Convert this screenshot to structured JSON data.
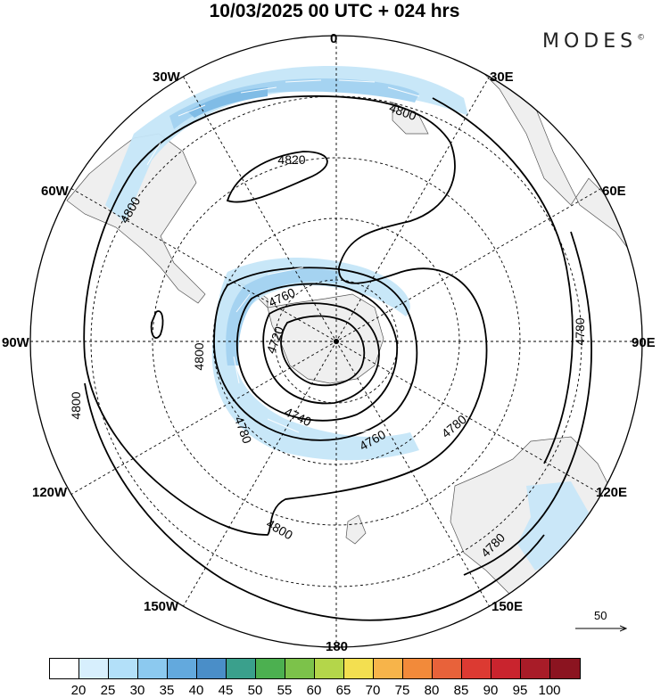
{
  "title": "10/03/2025  00 UTC  + 024 hrs",
  "brand": {
    "name": "MODES",
    "mark": "©"
  },
  "lon_labels": {
    "n": "0",
    "nne": "30E",
    "ene": "60E",
    "e": "90E",
    "ese": "120E",
    "sse": "150E",
    "s": "180",
    "ssw": "150W",
    "wsw": "120W",
    "w": "90W",
    "wnw": "60W",
    "nnw": "30W"
  },
  "contours": {
    "c4820": "4820",
    "c4800a": "4800",
    "c4800b": "4800",
    "c4800c": "4800",
    "c4800d": "4800",
    "c4800e": "4800",
    "c4780a": "4780",
    "c4780b": "4780",
    "c4780c": "4780",
    "c4780d": "4780",
    "c4760a": "4760",
    "c4760b": "4760",
    "c4740": "4740",
    "c4720": "4720"
  },
  "vector_ref": {
    "label": "50"
  },
  "colorbar": {
    "ticks": [
      "20",
      "25",
      "30",
      "35",
      "40",
      "45",
      "50",
      "55",
      "60",
      "65",
      "70",
      "75",
      "80",
      "85",
      "90",
      "95",
      "100"
    ],
    "colors": [
      "#ffffff",
      "#d7effd",
      "#b3e0f9",
      "#8cc9ef",
      "#63a9dd",
      "#4a8ec8",
      "#3aa08c",
      "#4cb050",
      "#7cc24a",
      "#b4d64a",
      "#f3df50",
      "#f7b44a",
      "#f28a3a",
      "#e8623a",
      "#dc3a32",
      "#c9242e",
      "#a81c28",
      "#8b1420"
    ]
  },
  "colors": {
    "land": "#efefef",
    "jet_light": "#c5e6f8",
    "jet_mid": "#a5d3f1",
    "jet_dark": "#80bce6"
  }
}
